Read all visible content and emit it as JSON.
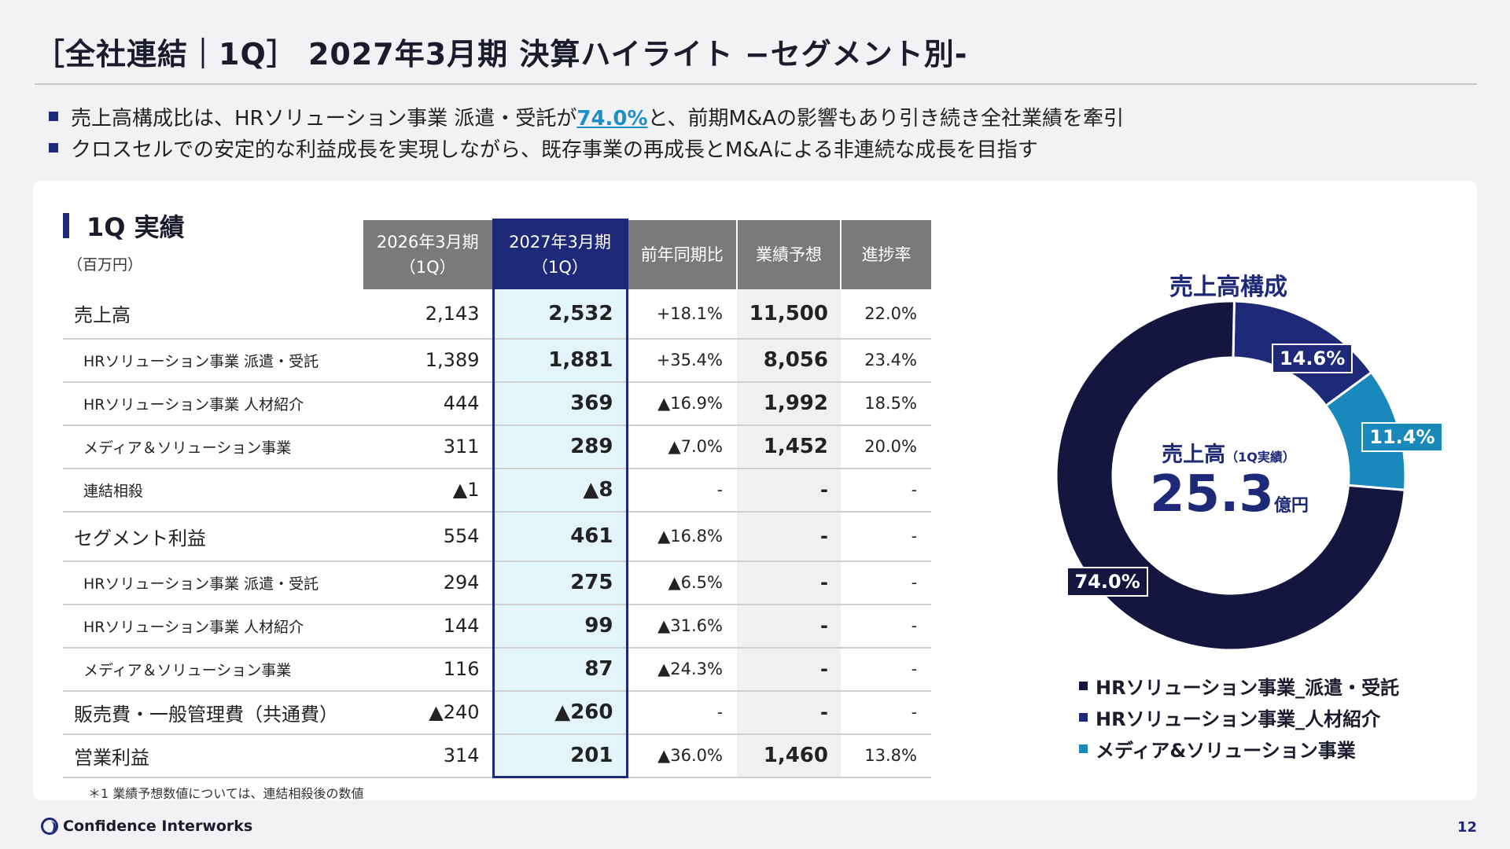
{
  "title": "［全社連結｜1Q］ 2027年3月期 決算ハイライト −セグメント別-",
  "bullets": [
    {
      "before": "売上高構成比は、HRソリューション事業 派遣・受託が",
      "highlight": "74.0%",
      "after": "と、前期M&Aの影響もあり引き続き全社業績を牽引"
    },
    {
      "before": "クロスセルでの安定的な利益成長を実現しながら、既存事業の再成長とM&Aによる非連続な成長を目指す",
      "highlight": "",
      "after": ""
    }
  ],
  "section": {
    "title": "1Q 実績",
    "unit": "（百万円）"
  },
  "table": {
    "headers": {
      "prev_line1": "2026年3月期",
      "prev_line2": "（1Q）",
      "cur_line1": "2027年3月期",
      "cur_line2": "（1Q）",
      "yoy": "前年同期比",
      "forecast": "業績予想",
      "progress": "進捗率"
    },
    "rows": [
      {
        "label": "売上高",
        "prev": "2,143",
        "cur": "2,532",
        "yoy": "+18.1%",
        "forecast": "11,500",
        "progress": "22.0%"
      },
      {
        "label": "HRソリューション事業 派遣・受託",
        "prev": "1,389",
        "cur": "1,881",
        "yoy": "+35.4%",
        "forecast": "8,056",
        "progress": "23.4%"
      },
      {
        "label": "HRソリューション事業 人材紹介",
        "prev": "444",
        "cur": "369",
        "yoy": "▲16.9%",
        "forecast": "1,992",
        "progress": "18.5%"
      },
      {
        "label": "メディア＆ソリューション事業",
        "prev": "311",
        "cur": "289",
        "yoy": "▲7.0%",
        "forecast": "1,452",
        "progress": "20.0%"
      },
      {
        "label": "連結相殺",
        "prev": "▲1",
        "cur": "▲8",
        "yoy": "-",
        "forecast": "-",
        "progress": "-"
      },
      {
        "label": "セグメント利益",
        "prev": "554",
        "cur": "461",
        "yoy": "▲16.8%",
        "forecast": "-",
        "progress": "-"
      },
      {
        "label": "HRソリューション事業 派遣・受託",
        "prev": "294",
        "cur": "275",
        "yoy": "▲6.5%",
        "forecast": "-",
        "progress": "-"
      },
      {
        "label": "HRソリューション事業 人材紹介",
        "prev": "144",
        "cur": "99",
        "yoy": "▲31.6%",
        "forecast": "-",
        "progress": "-"
      },
      {
        "label": "メディア＆ソリューション事業",
        "prev": "116",
        "cur": "87",
        "yoy": "▲24.3%",
        "forecast": "-",
        "progress": "-"
      },
      {
        "label": "販売費・一般管理費（共通費）",
        "prev": "▲240",
        "cur": "▲260",
        "yoy": "-",
        "forecast": "-",
        "progress": "-"
      },
      {
        "label": "営業利益",
        "prev": "314",
        "cur": "201",
        "yoy": "▲36.0%",
        "forecast": "1,460",
        "progress": "13.8%"
      }
    ],
    "footnote": "＊1 業績予想数値については、連結相殺後の数値"
  },
  "chart_data": {
    "type": "pie",
    "title": "売上高構成",
    "center_label": "売上高",
    "center_label_note": "（1Q実績）",
    "center_value": "25.3",
    "center_unit": "億円",
    "categories": [
      "HRソリューション事業_派遣・受託",
      "HRソリューション事業_人材紹介",
      "メディア&ソリューション事業"
    ],
    "values": [
      74.0,
      14.6,
      11.4
    ],
    "value_labels": [
      "74.0%",
      "14.6%",
      "11.4%"
    ],
    "colors": [
      "#141640",
      "#1e2a78",
      "#1889ba"
    ],
    "legend_position": "bottom"
  },
  "footer": {
    "company": "Confidence Interworks",
    "page": "12"
  },
  "colors": {
    "accent": "#1e2a78",
    "highlight": "#1a8fc9",
    "current_column_bg": "#e3f4fb"
  }
}
